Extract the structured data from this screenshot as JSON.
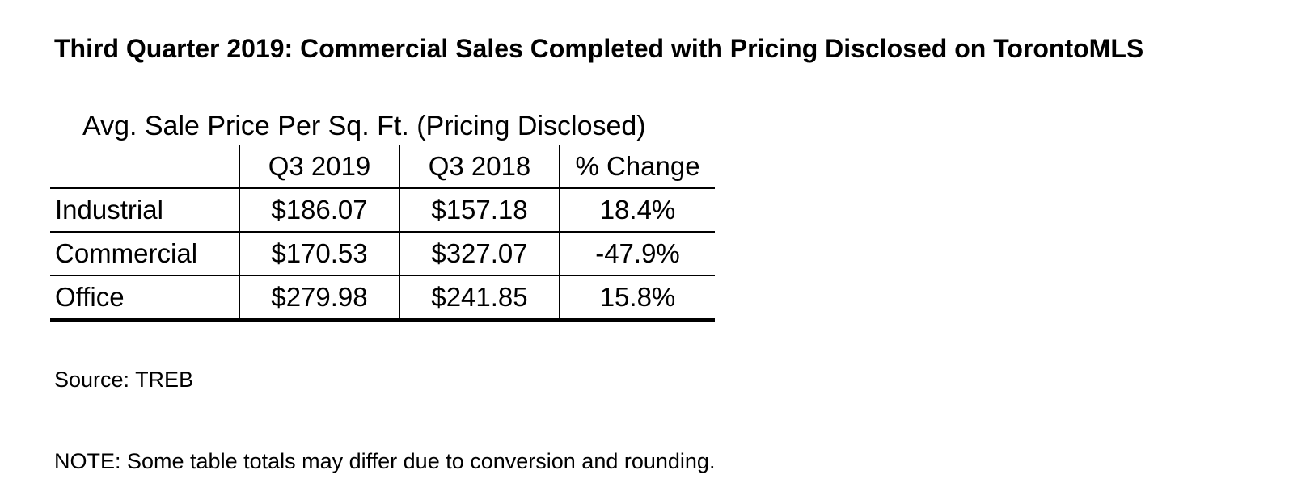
{
  "document": {
    "title": "Third Quarter 2019: Commercial Sales Completed with Pricing Disclosed on TorontoMLS",
    "source": "Source: TREB",
    "note": "NOTE: Some table totals may differ due to conversion and rounding."
  },
  "chart_data": {
    "type": "table",
    "title": "Avg. Sale Price Per Sq. Ft. (Pricing Disclosed)",
    "columns": [
      "",
      "Q3 2019",
      "Q3 2018",
      "% Change"
    ],
    "rows": [
      {
        "label": "Industrial",
        "q3_2019": "$186.07",
        "q3_2018": "$157.18",
        "change": "18.4%"
      },
      {
        "label": "Commercial",
        "q3_2019": "$170.53",
        "q3_2018": "$327.07",
        "change": "-47.9%"
      },
      {
        "label": "Office",
        "q3_2019": "$279.98",
        "q3_2018": "$241.85",
        "change": "15.8%"
      }
    ]
  }
}
